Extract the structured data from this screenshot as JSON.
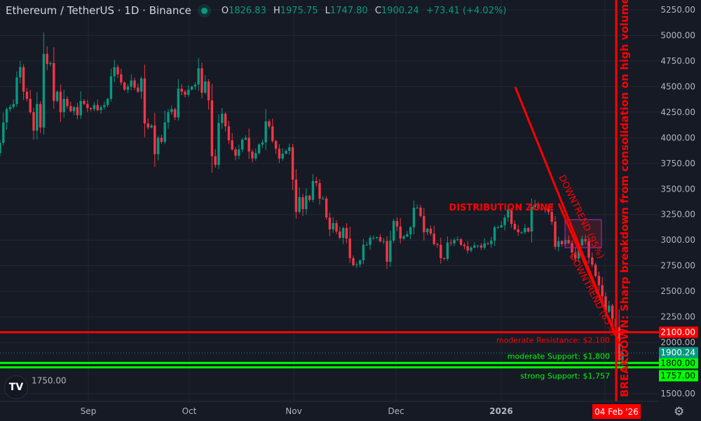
{
  "header": {
    "symbol": "Ethereum / TetherUS · 1D · Binance",
    "open_label": "O",
    "open": "1826.83",
    "high_label": "H",
    "high": "1975.75",
    "low_label": "L",
    "low": "1747.80",
    "close_label": "C",
    "close": "1900.24",
    "change": "+73.41 (+4.02%)"
  },
  "colors": {
    "up": "#089981",
    "down": "#f23645",
    "background": "#161a25",
    "grid": "#232733",
    "annotation_red": "#ff0000",
    "support_green": "#00ff00",
    "zone_border": "#9c27b0"
  },
  "logo": "TV",
  "settings_icon": "gear-icon",
  "chart_data": {
    "type": "candlestick",
    "title": "",
    "x_tick_labels": [
      "Sep",
      "Oct",
      "Nov",
      "Dec",
      "2026"
    ],
    "y_tick_labels": [
      "5250.00",
      "5000.00",
      "4750.00",
      "4500.00",
      "4250.00",
      "4000.00",
      "3750.00",
      "3500.00",
      "3250.00",
      "3000.00",
      "2750.00",
      "2500.00",
      "2250.00",
      "2000.00",
      "1750.00",
      "1500.00"
    ],
    "ylim": [
      1500,
      5250
    ],
    "grid": true,
    "first_open": 3580,
    "closes": [
      3620,
      3700,
      3850,
      3950,
      4150,
      4280,
      4300,
      4330,
      4590,
      4690,
      4450,
      4380,
      4250,
      4070,
      4330,
      4100,
      4820,
      4720,
      4730,
      4360,
      4450,
      4250,
      4380,
      4310,
      4260,
      4300,
      4220,
      4360,
      4330,
      4290,
      4280,
      4320,
      4270,
      4300,
      4320,
      4380,
      4600,
      4690,
      4620,
      4540,
      4470,
      4500,
      4560,
      4490,
      4450,
      4580,
      4140,
      4100,
      4120,
      3840,
      4000,
      3960,
      4150,
      4250,
      4280,
      4200,
      4480,
      4450,
      4420,
      4470,
      4500,
      4520,
      4680,
      4440,
      4550,
      4365,
      3820,
      3735,
      4145,
      4235,
      4112,
      3975,
      3886,
      3825,
      3886,
      3982,
      4000,
      3865,
      3797,
      3850,
      3934,
      3955,
      4160,
      4112,
      3968,
      3893,
      3797,
      3845,
      3872,
      3907,
      3591,
      3276,
      3420,
      3303,
      3434,
      3393,
      3578,
      3557,
      3406,
      3406,
      3221,
      3105,
      3166,
      3084,
      3022,
      3118,
      3015,
      2824,
      2755,
      2762,
      2803,
      2954,
      2954,
      3022,
      3022,
      3029,
      2988,
      2990,
      2789,
      2995,
      3187,
      3132,
      3015,
      3036,
      3057,
      3125,
      3317,
      3317,
      3235,
      3077,
      3111,
      3063,
      2961,
      2954,
      2824,
      2817,
      2975,
      2968,
      3002,
      3009,
      2954,
      2940,
      2899,
      2926,
      2947,
      2947,
      2926,
      2968,
      2961,
      2995,
      3125,
      3125,
      3146,
      3221,
      3296,
      3159,
      3105,
      3077,
      3077,
      3118,
      3084,
      3324,
      3351,
      3310,
      3296,
      3310,
      3276,
      3180,
      2934,
      2990,
      2960,
      3000,
      2970,
      2880,
      2820,
      2950,
      3010,
      2990,
      2830,
      2760,
      2650,
      2560,
      2450,
      2300,
      2360,
      2230,
      2150,
      1827,
      1900.24
    ],
    "last_candle": {
      "open": 1826.83,
      "high": 1975.75,
      "low": 1747.8,
      "close": 1900.24
    },
    "levels": [
      {
        "price": 2100,
        "axis_label": "2100.00",
        "text": "moderate Resistance: $2,100",
        "color": "#ff0000"
      },
      {
        "price": 1800,
        "axis_label": "1800.00",
        "text": "moderate Support: $1,800",
        "color": "#00ff00"
      },
      {
        "price": 1757,
        "axis_label": "1757.00",
        "text": "strong Support: $1,757",
        "color": "#00ff00"
      }
    ],
    "last_price_label": "1900.24",
    "crosshair_date": "04 Feb '26",
    "annotations": {
      "zone": "DISTRIBUTION ZONE",
      "trend1": "DOWNTREND (95%)",
      "trend2": "DOWNTREND (85%)",
      "breakdown": "BREAKDOWN: Sharp breakdown from consolidation on high volume, aligning"
    }
  }
}
